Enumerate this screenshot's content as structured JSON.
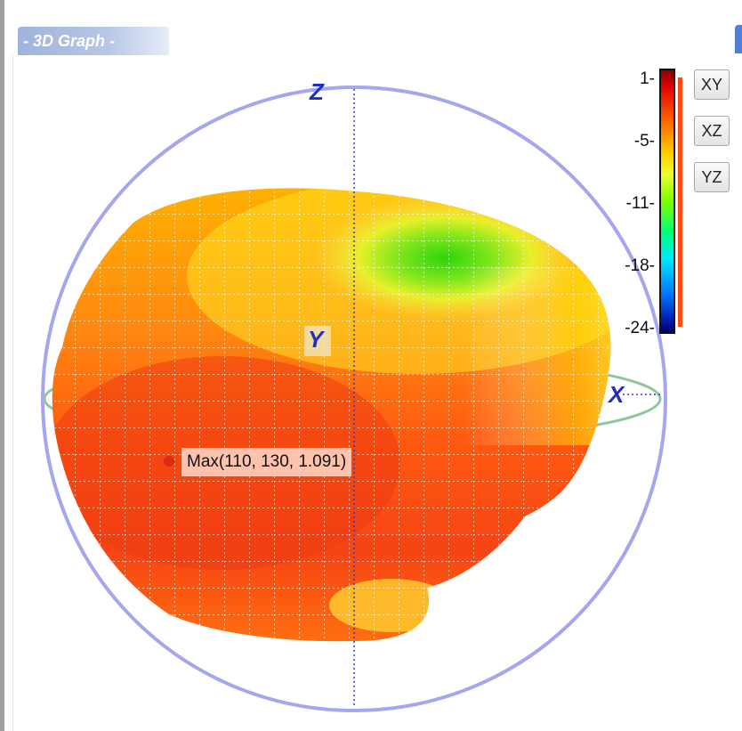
{
  "panel": {
    "title": "- 3D Graph -"
  },
  "view_buttons": [
    {
      "label": "XY"
    },
    {
      "label": "XZ"
    },
    {
      "label": "YZ"
    }
  ],
  "colorbar": {
    "ticks": [
      "1-",
      "-5-",
      "-11-",
      "-18-",
      "-24-"
    ],
    "min": -24,
    "max": 1
  },
  "axes": {
    "x": "X",
    "y": "Y",
    "z": "Z"
  },
  "annotation": {
    "max_text": "Max(110, 130, 1.091)"
  },
  "colors": {
    "sphere_outline": "#a6a6ee",
    "equator_ring": "#8fc79a",
    "axis_label": "#1f2fbf",
    "surface_high": "#e8401a",
    "surface_mid": "#ffb020",
    "surface_low": "#33d60f"
  }
}
